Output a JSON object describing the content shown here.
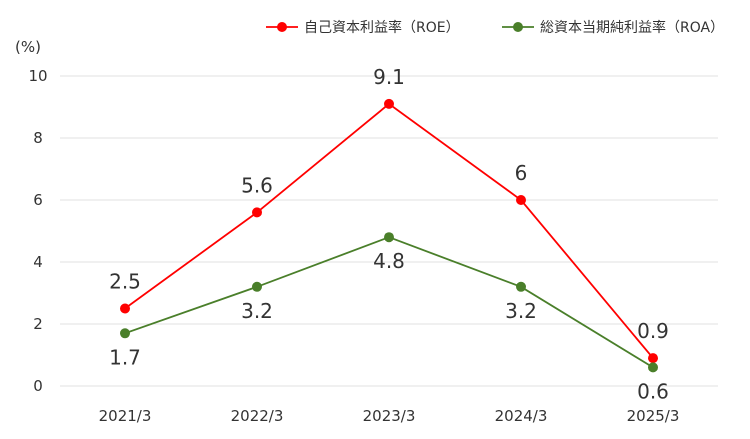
{
  "chart_data": {
    "type": "line",
    "categories": [
      "2021/3",
      "2022/3",
      "2023/3",
      "2024/3",
      "2025/3"
    ],
    "unit_label": "(%)",
    "ylim": [
      0,
      10
    ],
    "yticks": [
      "0",
      "2",
      "4",
      "6",
      "8",
      "10"
    ],
    "grid": true,
    "legend_position": "top-right",
    "series": [
      {
        "name": "自己資本利益率（ROE）",
        "color": "#ff0000",
        "values": [
          2.5,
          5.6,
          9.1,
          6,
          0.9
        ],
        "labels": [
          "2.5",
          "5.6",
          "9.1",
          "6",
          "0.9"
        ]
      },
      {
        "name": "総資本当期純利益率（ROA）",
        "color": "#4a7f2a",
        "values": [
          1.7,
          3.2,
          4.8,
          3.2,
          0.6
        ],
        "labels": [
          "1.7",
          "3.2",
          "4.8",
          "3.2",
          "0.6"
        ]
      }
    ]
  }
}
